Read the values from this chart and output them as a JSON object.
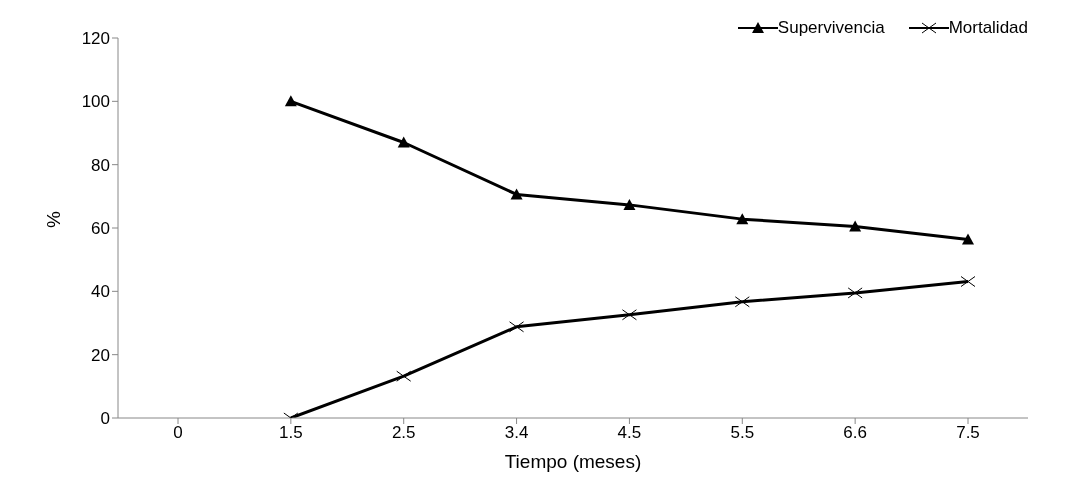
{
  "chart_data": {
    "type": "line",
    "xlabel": "Tiempo (meses)",
    "ylabel": "%",
    "categories": [
      "0",
      "1.5",
      "2.5",
      "3.4",
      "4.5",
      "5.5",
      "6.6",
      "7.5"
    ],
    "series": [
      {
        "name": "Supervivencia",
        "color": "#000000",
        "marker": "triangle",
        "values": [
          null,
          100,
          87,
          70.6,
          67.3,
          62.8,
          60.5,
          56.4
        ]
      },
      {
        "name": "Mortalidad",
        "color": "#000000",
        "marker": "cross",
        "values": [
          null,
          0,
          13.2,
          28.8,
          32.6,
          36.7,
          39.5,
          43.1
        ]
      }
    ],
    "ylim": [
      0,
      120
    ],
    "yticks": [
      0,
      20,
      40,
      60,
      80,
      100,
      120
    ],
    "grid": false,
    "legend": "top right",
    "line_style": "solid"
  }
}
